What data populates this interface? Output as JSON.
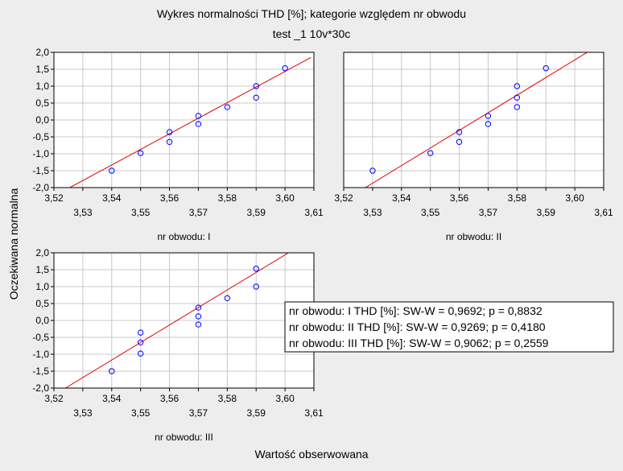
{
  "figure": {
    "title_line1": "Wykres normalności   THD [%]; kategorie względem nr obwodu",
    "title_line2": "test _1 10v*30c",
    "xlabel": "Wartość obserwowana",
    "ylabel": "Oczekiwana normalna"
  },
  "colors": {
    "background": "#ededed",
    "plot_background": "#ffffff",
    "grid": "#c8c8c8",
    "point": "#0000ff",
    "fit_line": "#e00000"
  },
  "chart_data": [
    {
      "type": "scatter",
      "panel_label": "nr obwodu: I",
      "xlim": [
        3.52,
        3.61
      ],
      "ylim": [
        -2.0,
        2.0
      ],
      "x_ticks_upper": [
        "3,52",
        "3,54",
        "3,56",
        "3,58",
        "3,60"
      ],
      "x_ticks_lower": [
        "3,53",
        "3,55",
        "3,57",
        "3,59",
        "3,61"
      ],
      "y_ticks": [
        "-2,0",
        "-1,5",
        "-1,0",
        "-0,5",
        "0,0",
        "0,5",
        "1,0",
        "1,5",
        "2,0"
      ],
      "grid": true,
      "points": [
        {
          "x": 3.54,
          "y": -1.5
        },
        {
          "x": 3.55,
          "y": -0.98
        },
        {
          "x": 3.56,
          "y": -0.65
        },
        {
          "x": 3.56,
          "y": -0.36
        },
        {
          "x": 3.57,
          "y": -0.12
        },
        {
          "x": 3.57,
          "y": 0.12
        },
        {
          "x": 3.58,
          "y": 0.38
        },
        {
          "x": 3.59,
          "y": 0.66
        },
        {
          "x": 3.59,
          "y": 1.0
        },
        {
          "x": 3.6,
          "y": 1.53
        }
      ],
      "fit_line": {
        "x": [
          3.5255,
          3.609
        ],
        "y": [
          -2.0,
          1.85
        ]
      }
    },
    {
      "type": "scatter",
      "panel_label": "nr obwodu: II",
      "xlim": [
        3.52,
        3.61
      ],
      "ylim": [
        -2.0,
        2.0
      ],
      "x_ticks_upper": [
        "3,52",
        "3,54",
        "3,56",
        "3,58",
        "3,60"
      ],
      "x_ticks_lower": [
        "3,53",
        "3,55",
        "3,57",
        "3,59",
        "3,61"
      ],
      "y_ticks": [],
      "grid": true,
      "points": [
        {
          "x": 3.53,
          "y": -1.5
        },
        {
          "x": 3.55,
          "y": -0.98
        },
        {
          "x": 3.56,
          "y": -0.65
        },
        {
          "x": 3.56,
          "y": -0.36
        },
        {
          "x": 3.57,
          "y": -0.12
        },
        {
          "x": 3.57,
          "y": 0.12
        },
        {
          "x": 3.58,
          "y": 0.38
        },
        {
          "x": 3.58,
          "y": 0.66
        },
        {
          "x": 3.58,
          "y": 1.0
        },
        {
          "x": 3.59,
          "y": 1.53
        }
      ],
      "fit_line": {
        "x": [
          3.5275,
          3.6043
        ],
        "y": [
          -2.0,
          2.0
        ]
      }
    },
    {
      "type": "scatter",
      "panel_label": "nr obwodu: III",
      "xlim": [
        3.52,
        3.61
      ],
      "ylim": [
        -2.0,
        2.0
      ],
      "x_ticks_upper": [
        "3,52",
        "3,54",
        "3,56",
        "3,58",
        "3,60"
      ],
      "x_ticks_lower": [
        "3,53",
        "3,55",
        "3,57",
        "3,59",
        "3,61"
      ],
      "y_ticks": [
        "-2,0",
        "-1,5",
        "-1,0",
        "-0,5",
        "0,0",
        "0,5",
        "1,0",
        "1,5",
        "2,0"
      ],
      "grid": true,
      "points": [
        {
          "x": 3.54,
          "y": -1.5
        },
        {
          "x": 3.55,
          "y": -0.98
        },
        {
          "x": 3.55,
          "y": -0.65
        },
        {
          "x": 3.55,
          "y": -0.36
        },
        {
          "x": 3.57,
          "y": -0.12
        },
        {
          "x": 3.57,
          "y": 0.12
        },
        {
          "x": 3.57,
          "y": 0.38
        },
        {
          "x": 3.58,
          "y": 0.66
        },
        {
          "x": 3.59,
          "y": 1.0
        },
        {
          "x": 3.59,
          "y": 1.53
        }
      ],
      "fit_line": {
        "x": [
          3.524,
          3.6012
        ],
        "y": [
          -2.0,
          2.0
        ]
      }
    }
  ],
  "legend": {
    "entries": [
      "nr obwodu: I  THD [%]:  SW-W = 0,9692; p = 0,8832",
      "nr obwodu: II  THD [%]:  SW-W = 0,9269; p = 0,4180",
      "nr obwodu: III  THD [%]:  SW-W = 0,9062; p = 0,2559"
    ]
  }
}
